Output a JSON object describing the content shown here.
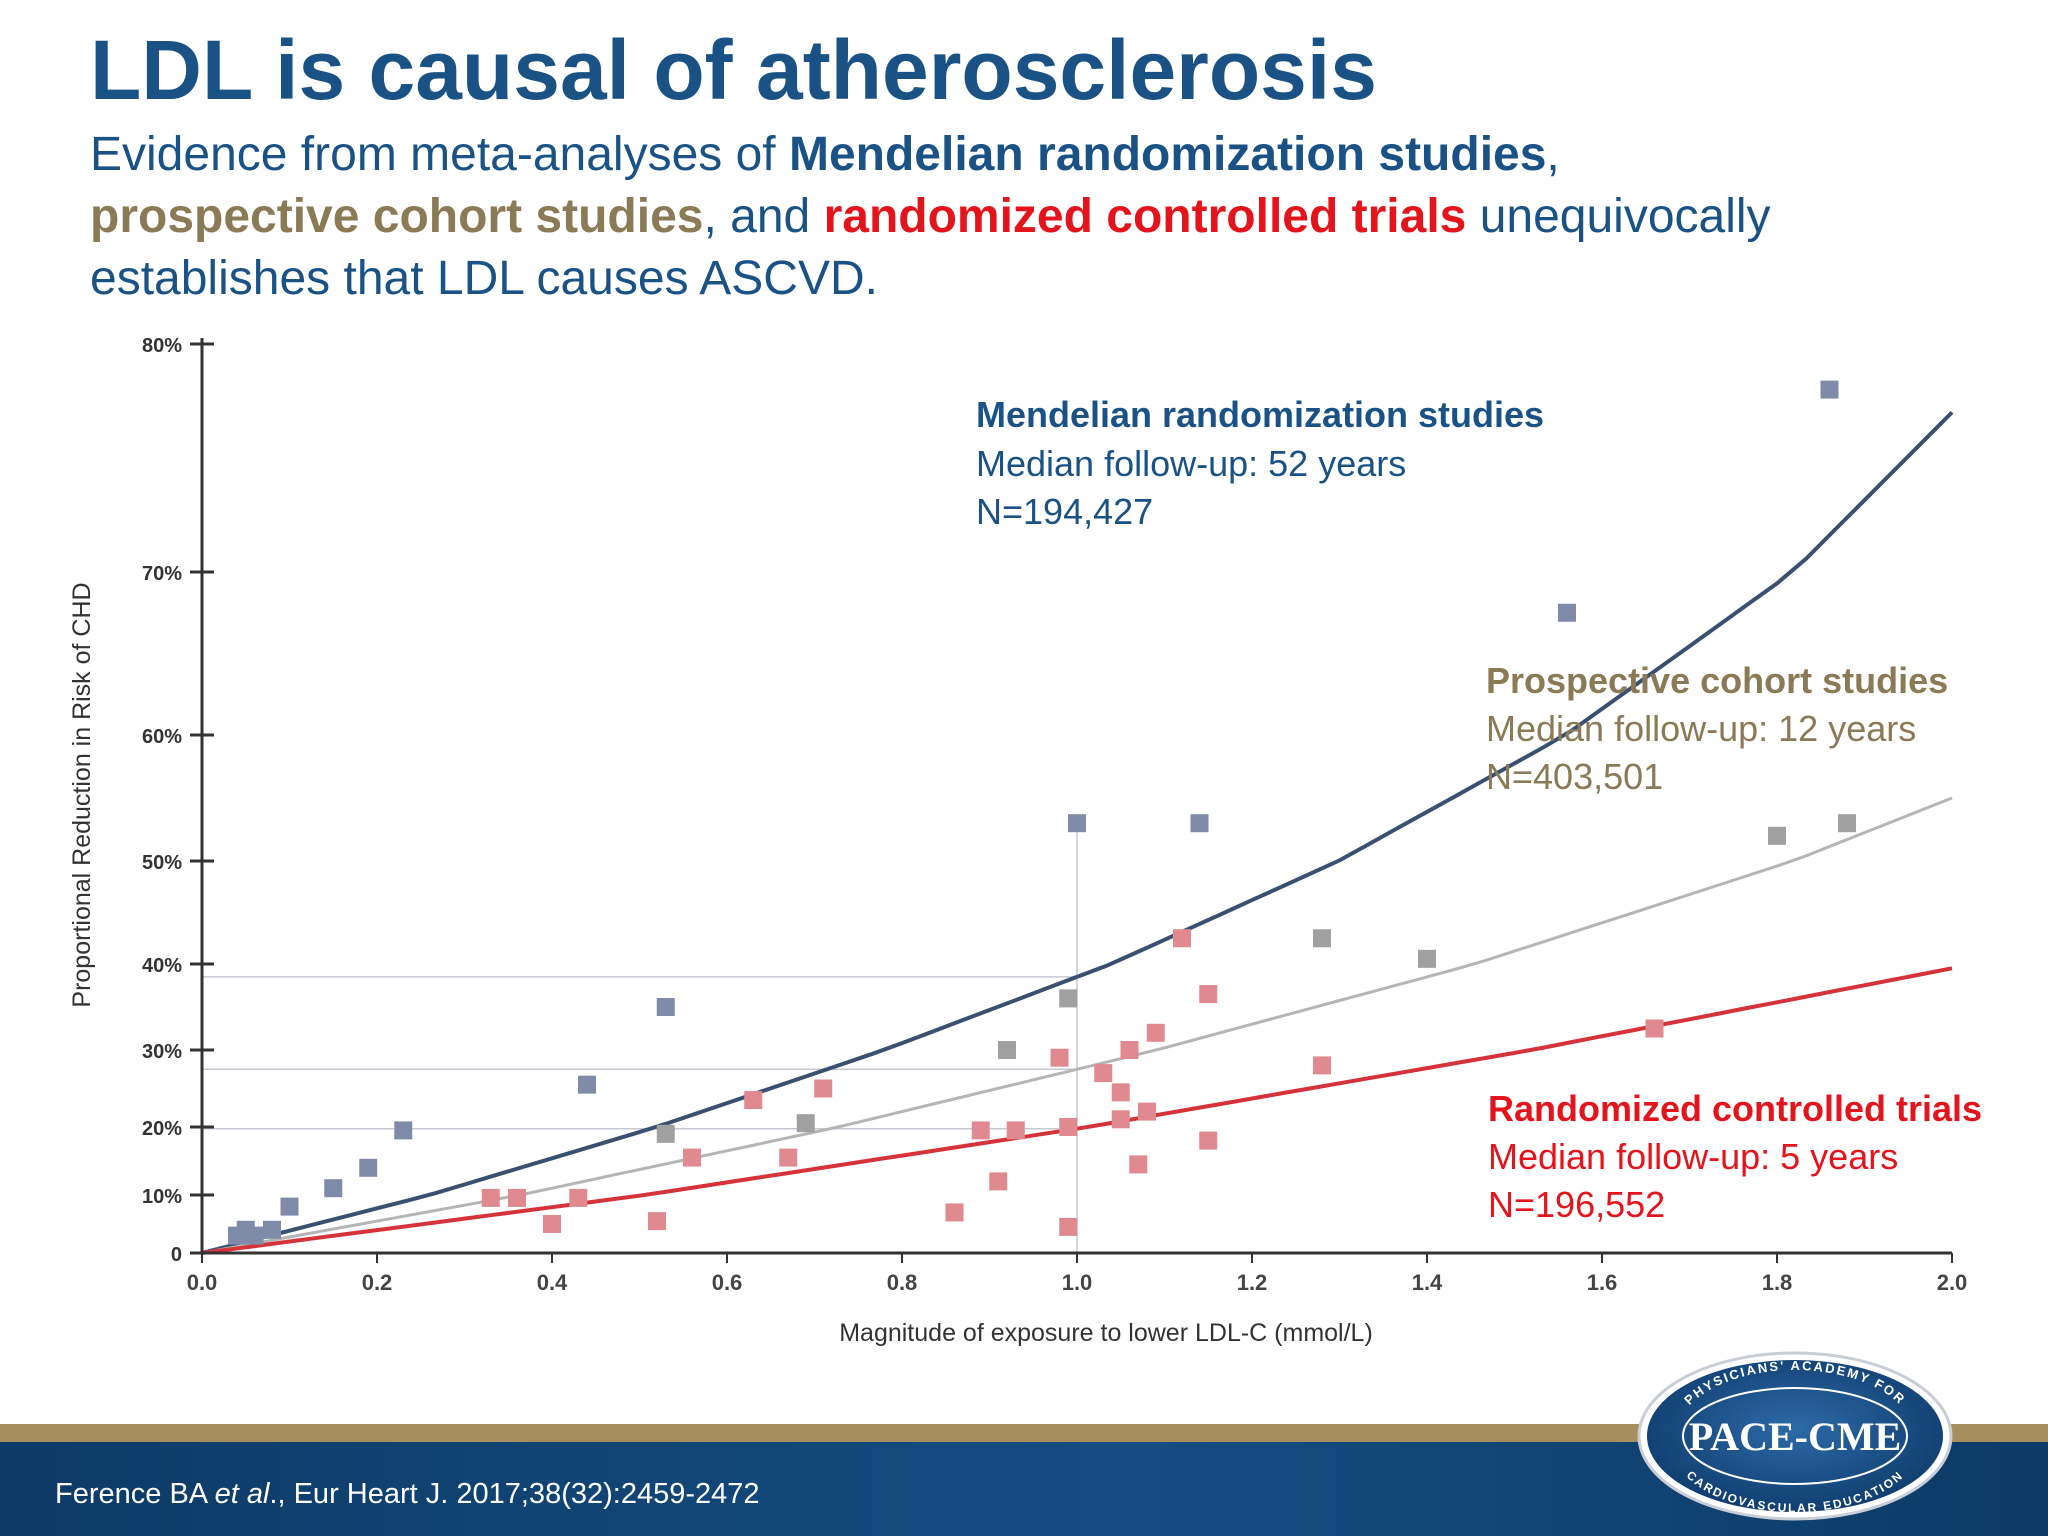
{
  "slide": {
    "title": "LDL is causal of atherosclerosis",
    "subtitle": {
      "part1": "Evidence from meta-analyses of ",
      "mr": "Mendelian randomization studies",
      "part2": ",",
      "pc": "prospective cohort studies",
      "part3": ", and ",
      "rct": "randomized controlled trials",
      "part4": " unequivocally establishes that LDL causes ASCVD."
    },
    "citation": {
      "author": "Ference BA ",
      "etal": "et al",
      "rest": "., Eur Heart J. 2017;38(32):2459-2472"
    },
    "logo": {
      "text": "PACE-CME",
      "arc_top": "PHYSICIANS' ACADEMY FOR",
      "arc_bottom": "CARDIOVASCULAR EDUCATION"
    }
  },
  "colors": {
    "mr": "#1a5286",
    "mr_line": "#3a5070",
    "mr_marker": "#7f8ba8",
    "pc": "#8a7a55",
    "pc_line": "#b5b5b5",
    "pc_marker": "#a0a0a0",
    "rct": "#e3141b",
    "rct_line": "#d6323a",
    "rct_marker": "#e08a8f",
    "footer": "#0d3a66"
  },
  "chart_data": {
    "type": "scatter",
    "xlabel": "Magnitude of exposure to lower LDL-C (mmol/L)",
    "ylabel": "Proportional Reduction in Risk of CHD",
    "xlim": [
      0,
      2.0
    ],
    "x_ticks": [
      "0.0",
      "0.2",
      "0.4",
      "0.6",
      "0.8",
      "1.0",
      "1.2",
      "1.4",
      "1.6",
      "1.8",
      "2.0"
    ],
    "y_ticks": [
      {
        "value": 0,
        "label": "0"
      },
      {
        "value": 10,
        "label": "10%"
      },
      {
        "value": 20,
        "label": "20%"
      },
      {
        "value": 30,
        "label": "30%"
      },
      {
        "value": 40,
        "label": "40%"
      },
      {
        "value": 50,
        "label": "50%"
      },
      {
        "value": 60,
        "label": "60%"
      },
      {
        "value": 70,
        "label": "70%"
      },
      {
        "value": 80,
        "label": "80%"
      }
    ],
    "series": [
      {
        "key": "mr",
        "name": "Mendelian randomization studies",
        "followup": "Median follow-up: 52 years",
        "n": "N=194,427",
        "line": [
          [
            0,
            0
          ],
          [
            2.0,
            77
          ]
        ],
        "points": [
          {
            "x": 0.04,
            "y": 3
          },
          {
            "x": 0.05,
            "y": 4
          },
          {
            "x": 0.06,
            "y": 3
          },
          {
            "x": 0.08,
            "y": 4
          },
          {
            "x": 0.1,
            "y": 8
          },
          {
            "x": 0.15,
            "y": 11
          },
          {
            "x": 0.19,
            "y": 14
          },
          {
            "x": 0.23,
            "y": 19.5
          },
          {
            "x": 0.44,
            "y": 25.5
          },
          {
            "x": 0.53,
            "y": 35
          },
          {
            "x": 1.0,
            "y": 53
          },
          {
            "x": 1.14,
            "y": 53
          },
          {
            "x": 1.56,
            "y": 67.5
          },
          {
            "x": 1.86,
            "y": 78
          }
        ]
      },
      {
        "key": "pc",
        "name": "Prospective cohort studies",
        "followup": "Median follow-up: 12 years",
        "n": "N=403,501",
        "line": [
          [
            0,
            0
          ],
          [
            2.0,
            55
          ]
        ],
        "points": [
          {
            "x": 0.53,
            "y": 19
          },
          {
            "x": 0.69,
            "y": 20.5
          },
          {
            "x": 0.92,
            "y": 30
          },
          {
            "x": 0.99,
            "y": 36
          },
          {
            "x": 1.28,
            "y": 42.5
          },
          {
            "x": 1.4,
            "y": 40.5
          },
          {
            "x": 1.8,
            "y": 52
          },
          {
            "x": 1.88,
            "y": 53
          }
        ]
      },
      {
        "key": "rct",
        "name": "Randomized controlled trials",
        "followup": "Median follow-up: 5 years",
        "n": "N=196,552",
        "line": [
          [
            0,
            0
          ],
          [
            2.0,
            39.5
          ]
        ],
        "points": [
          {
            "x": 0.33,
            "y": 9.5
          },
          {
            "x": 0.36,
            "y": 9.5
          },
          {
            "x": 0.4,
            "y": 5
          },
          {
            "x": 0.43,
            "y": 9.5
          },
          {
            "x": 0.52,
            "y": 5.5
          },
          {
            "x": 0.56,
            "y": 15.5
          },
          {
            "x": 0.63,
            "y": 23.5
          },
          {
            "x": 0.67,
            "y": 15.5
          },
          {
            "x": 0.71,
            "y": 25
          },
          {
            "x": 0.86,
            "y": 7
          },
          {
            "x": 0.89,
            "y": 19.5
          },
          {
            "x": 0.91,
            "y": 12
          },
          {
            "x": 0.93,
            "y": 19.5
          },
          {
            "x": 0.98,
            "y": 29
          },
          {
            "x": 0.99,
            "y": 20
          },
          {
            "x": 0.99,
            "y": 4.5
          },
          {
            "x": 1.03,
            "y": 27
          },
          {
            "x": 1.05,
            "y": 24.5
          },
          {
            "x": 1.05,
            "y": 21
          },
          {
            "x": 1.06,
            "y": 30
          },
          {
            "x": 1.07,
            "y": 14.5
          },
          {
            "x": 1.08,
            "y": 22
          },
          {
            "x": 1.09,
            "y": 32
          },
          {
            "x": 1.12,
            "y": 42.5
          },
          {
            "x": 1.15,
            "y": 18
          },
          {
            "x": 1.15,
            "y": 36.5
          },
          {
            "x": 1.28,
            "y": 28
          },
          {
            "x": 1.66,
            "y": 32.5
          }
        ]
      }
    ]
  }
}
